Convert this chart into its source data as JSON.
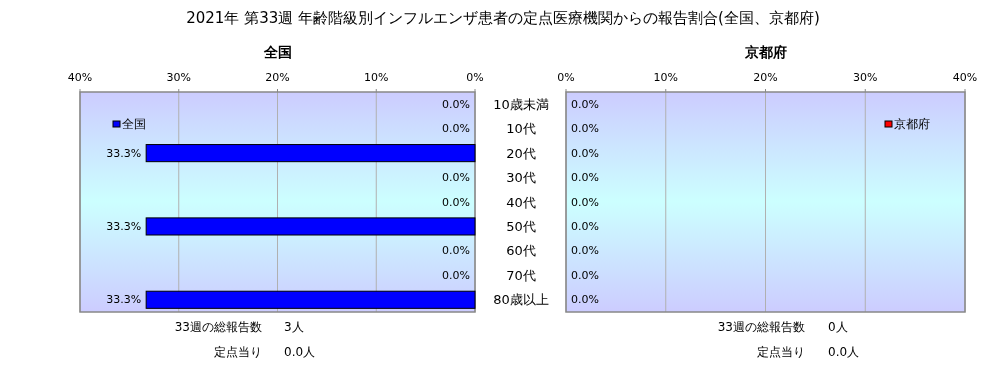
{
  "chart_data": [
    {
      "type": "bar",
      "orientation": "horizontal",
      "title": "2021年 第33週 年齢階級別インフルエンザ患者の定点医療機関からの報告割合(全国、京都府)",
      "subtitle": "全国",
      "categories": [
        null,
        null,
        null,
        null,
        null,
        null,
        null,
        null,
        null
      ],
      "series": [
        {
          "name": "全国",
          "color": "#0000ff",
          "values": [
            0,
            0,
            33.3,
            0,
            0,
            33.3,
            0,
            0,
            33.3
          ],
          "value_labels": [
            "0.0%",
            "0.0%",
            "33.3%",
            "0.0%",
            "0.0%",
            "33.3%",
            "0.0%",
            "0.0%",
            "33.3%"
          ]
        }
      ],
      "xlim": [
        40,
        0
      ],
      "xticks": [
        {
          "value": 40,
          "label": "40%"
        },
        {
          "value": 30,
          "label": "30%"
        },
        {
          "value": 20,
          "label": "20%"
        },
        {
          "value": 10,
          "label": "10%"
        },
        {
          "value": 0,
          "label": "0%"
        }
      ],
      "grid": "x",
      "legend": "top left",
      "annotations": [
        "33週の総報告数",
        "3人",
        "定点当り",
        "0.0人"
      ]
    },
    {
      "type": "bar",
      "orientation": "horizontal",
      "title": "京都府",
      "categories": [
        "10歳未満",
        "10代",
        "20代",
        "30代",
        "40代",
        "50代",
        "60代",
        "70代",
        "80歳以上"
      ],
      "series": [
        {
          "name": "京都府",
          "color": "#ff0000",
          "values": [
            0,
            0,
            0,
            0,
            0,
            0,
            0,
            0,
            0
          ],
          "value_labels": [
            "0.0%",
            "0.0%",
            "0.0%",
            "0.0%",
            "0.0%",
            "0.0%",
            "0.0%",
            "0.0%",
            "0.0%"
          ]
        }
      ],
      "xlim": [
        0,
        40
      ],
      "xticks": [
        {
          "value": 0,
          "label": "0%"
        },
        {
          "value": 10,
          "label": "10%"
        },
        {
          "value": 20,
          "label": "20%"
        },
        {
          "value": 30,
          "label": "30%"
        },
        {
          "value": 40,
          "label": "40%"
        }
      ],
      "grid": "x",
      "legend": "top right",
      "annotations": [
        "33週の総報告数",
        "0人",
        "定点当り",
        "0.0人"
      ]
    }
  ]
}
